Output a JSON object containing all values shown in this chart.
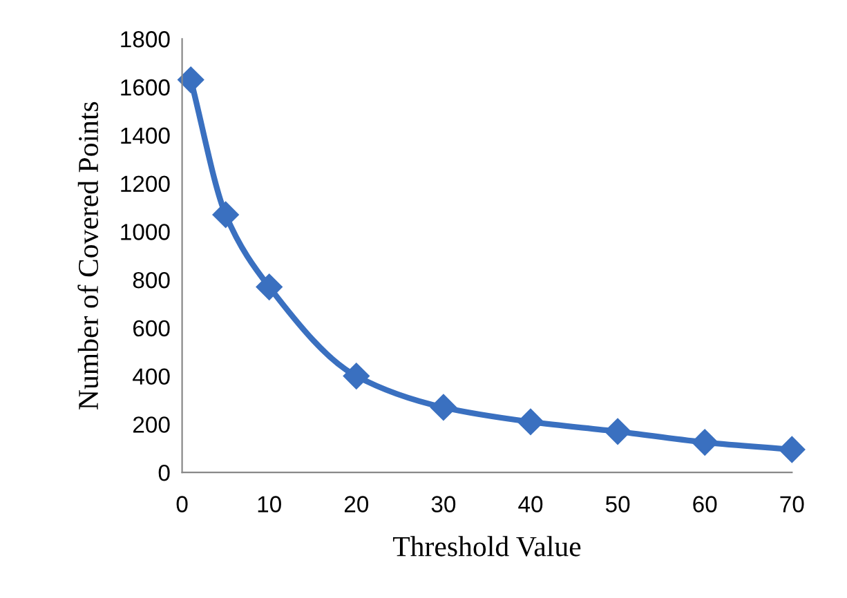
{
  "chart_data": {
    "type": "line",
    "xlabel": "Threshold Value",
    "ylabel": "Number of Covered Points",
    "x": [
      1,
      5,
      10,
      20,
      30,
      40,
      50,
      60,
      70
    ],
    "series": [
      {
        "color": "#3a70c0",
        "values": [
          1630,
          1070,
          770,
          400,
          270,
          210,
          170,
          125,
          95
        ]
      }
    ],
    "xlim": [
      0,
      70
    ],
    "xticks": [
      0,
      10,
      20,
      30,
      40,
      50,
      60,
      70
    ],
    "ylim": [
      0,
      1800
    ],
    "yticks": [
      0,
      200,
      400,
      600,
      800,
      1000,
      1200,
      1400,
      1600,
      1800
    ],
    "grid": false,
    "marker": "diamond",
    "line_style": "solid",
    "legend": false
  }
}
